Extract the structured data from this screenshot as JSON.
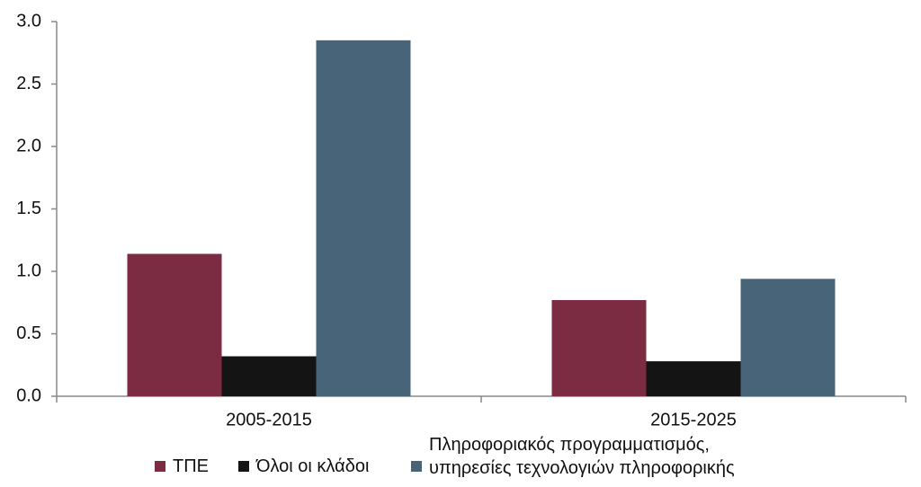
{
  "chart_data": {
    "type": "bar",
    "categories": [
      "2005-2015",
      "2015-2025"
    ],
    "series": [
      {
        "name": "ΤΠΕ",
        "color": "#7b2c42",
        "values": [
          1.14,
          0.77
        ]
      },
      {
        "name": "Όλοι οι κλάδοι",
        "color": "#141414",
        "values": [
          0.32,
          0.28
        ]
      },
      {
        "name": "Πληροφοριακός προγραμματισμός,\nυπηρεσίες τεχνολογιών πληροφορικής",
        "color": "#476478",
        "values": [
          2.85,
          0.94
        ]
      }
    ],
    "ylim": [
      0,
      3
    ],
    "yticks": [
      {
        "value": 0,
        "label": "0.0"
      },
      0.5,
      {
        "value": 1,
        "label": "1.0"
      },
      1.5,
      {
        "value": 2,
        "label": "2.0"
      },
      2.5,
      {
        "value": 3,
        "label": "3.0"
      }
    ],
    "grid": false
  }
}
